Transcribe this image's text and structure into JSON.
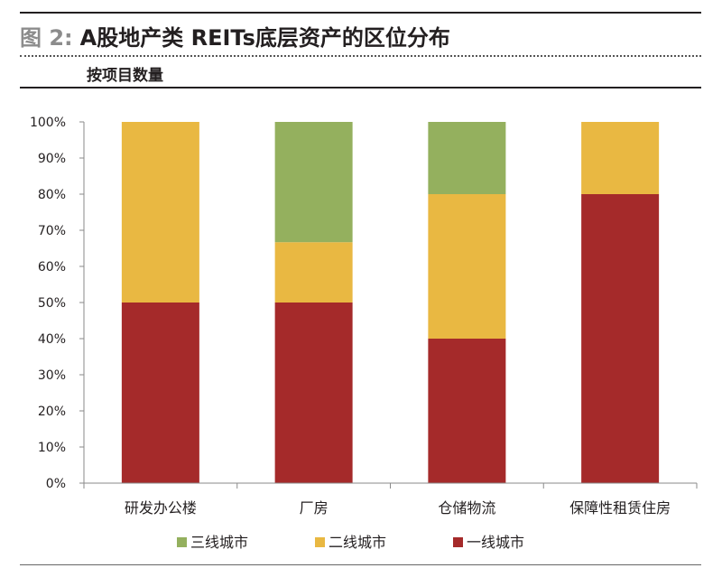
{
  "header": {
    "figure_label": "图 2:",
    "title": "A股地产类 REITs底层资产的区位分布",
    "subtitle": "按项目数量"
  },
  "chart_data": {
    "type": "bar",
    "stacked": true,
    "categories": [
      "研发办公楼",
      "厂房",
      "仓储物流",
      "保障性租赁住房"
    ],
    "series": [
      {
        "name": "一线城市",
        "color": "#a52a2a",
        "values": [
          50,
          50,
          40,
          80
        ]
      },
      {
        "name": "二线城市",
        "color": "#e9b842",
        "values": [
          50,
          16.7,
          40,
          20
        ]
      },
      {
        "name": "三线城市",
        "color": "#94b05e",
        "values": [
          0,
          33.3,
          20,
          0
        ]
      }
    ],
    "legend_order": [
      "三线城市",
      "二线城市",
      "一线城市"
    ],
    "y_ticks": [
      "0%",
      "10%",
      "20%",
      "30%",
      "40%",
      "50%",
      "60%",
      "70%",
      "80%",
      "90%",
      "100%"
    ],
    "ylim": [
      0,
      100
    ],
    "grid": false,
    "legend_position": "bottom"
  }
}
